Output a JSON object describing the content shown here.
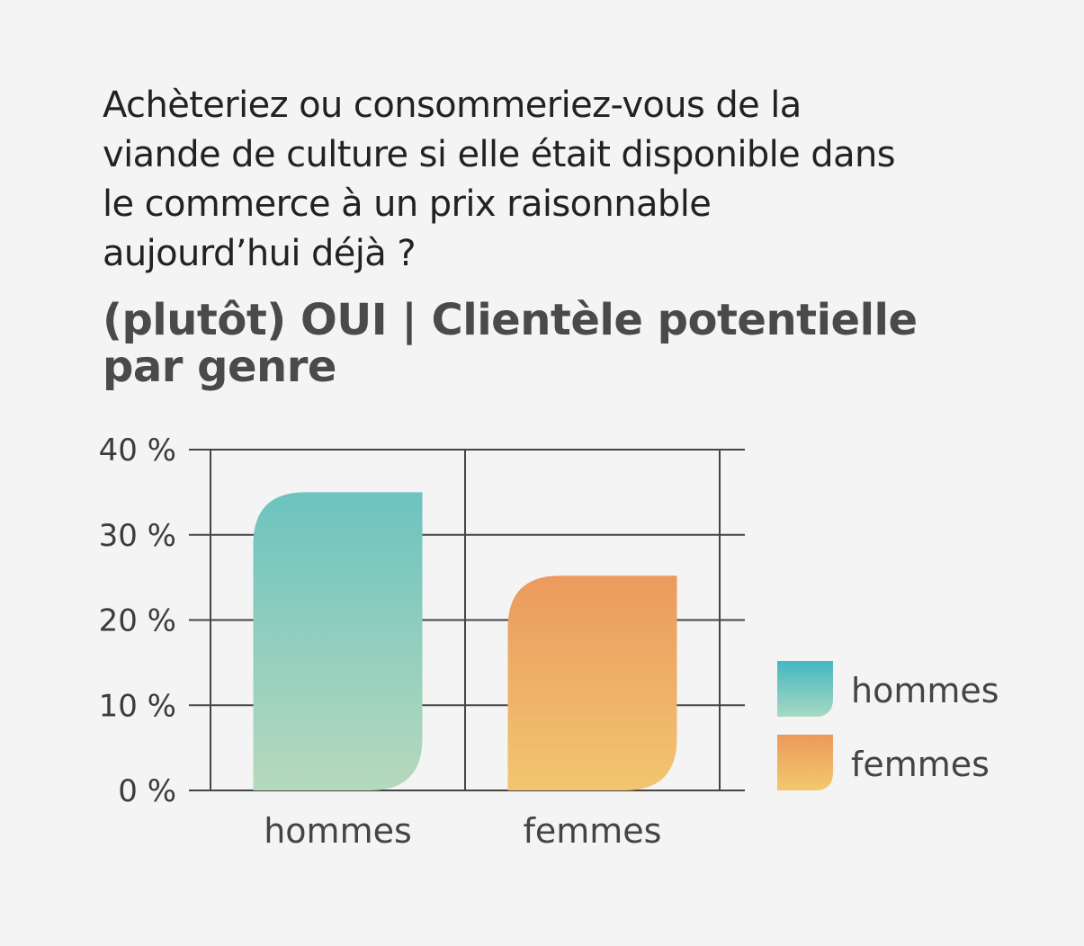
{
  "question": "Achèteriez ou consommeriez-vous de la viande de culture si elle était disponible dans le commerce à un prix raisonnable aujourd’hui déjà ?",
  "title": "(plutôt) OUI | Clientèle potentielle par genre",
  "chart_data": {
    "type": "bar",
    "categories": [
      "hommes",
      "femmes"
    ],
    "values": [
      35,
      25.2
    ],
    "unit": "%",
    "ylim": [
      0,
      40
    ],
    "yticks": [
      0,
      10,
      20,
      30,
      40
    ],
    "ytick_labels": [
      "0 %",
      "10 %",
      "20 %",
      "30 %",
      "40 %"
    ],
    "grid": true,
    "legend_position": "right",
    "legend": [
      "hommes",
      "femmes"
    ],
    "colors": {
      "hommes": {
        "top": "#6cc3bf",
        "bottom": "#b6d9bc"
      },
      "femmes": {
        "top": "#eb9a5d",
        "bottom": "#f1c670"
      },
      "hommes_legend": {
        "top": "#44b7c2",
        "bottom": "#a7d9c2"
      },
      "femmes_legend": {
        "top": "#ec9a5b",
        "bottom": "#f2c86e"
      },
      "axis": "#444444"
    }
  }
}
